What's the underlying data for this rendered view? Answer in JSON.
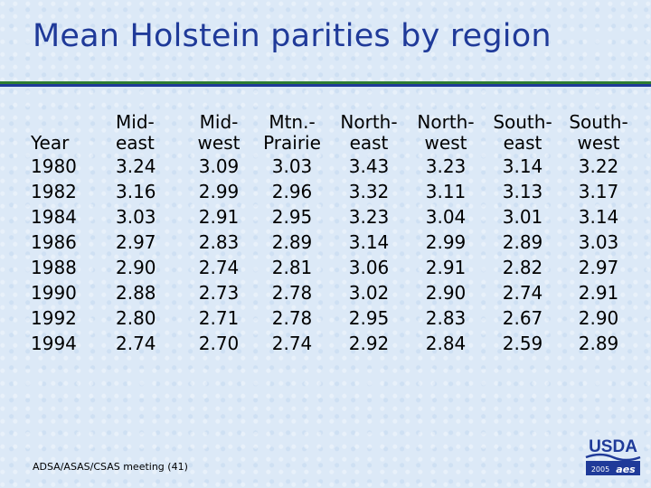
{
  "title": "Mean Holstein parities by region",
  "table": {
    "year_header": "Year",
    "headers": [
      [
        "Mid-",
        "east"
      ],
      [
        "Mid-",
        "west"
      ],
      [
        "Mtn.-",
        "Prairie"
      ],
      [
        "North-",
        "east"
      ],
      [
        "North-",
        "west"
      ],
      [
        "South-",
        "east"
      ],
      [
        "South-",
        "west"
      ]
    ],
    "rows": [
      [
        "1980",
        "3.24",
        "3.09",
        "3.03",
        "3.43",
        "3.23",
        "3.14",
        "3.22"
      ],
      [
        "1982",
        "3.16",
        "2.99",
        "2.96",
        "3.32",
        "3.11",
        "3.13",
        "3.17"
      ],
      [
        "1984",
        "3.03",
        "2.91",
        "2.95",
        "3.23",
        "3.04",
        "3.01",
        "3.14"
      ],
      [
        "1986",
        "2.97",
        "2.83",
        "2.89",
        "3.14",
        "2.99",
        "2.89",
        "3.03"
      ],
      [
        "1988",
        "2.90",
        "2.74",
        "2.81",
        "3.06",
        "2.91",
        "2.82",
        "2.97"
      ],
      [
        "1990",
        "2.88",
        "2.73",
        "2.78",
        "3.02",
        "2.90",
        "2.74",
        "2.91"
      ],
      [
        "1992",
        "2.80",
        "2.71",
        "2.78",
        "2.95",
        "2.83",
        "2.67",
        "2.90"
      ],
      [
        "1994",
        "2.74",
        "2.70",
        "2.74",
        "2.92",
        "2.84",
        "2.59",
        "2.89"
      ]
    ]
  },
  "footer": "ADSA/ASAS/CSAS meeting (41)",
  "logo": {
    "text": "USDA",
    "year": "2005",
    "mark": "aes"
  },
  "colors": {
    "title": "#1f3a99",
    "rule_green": "#2e7d32",
    "rule_blue": "#1f3a99",
    "logo": "#1f3a99"
  }
}
